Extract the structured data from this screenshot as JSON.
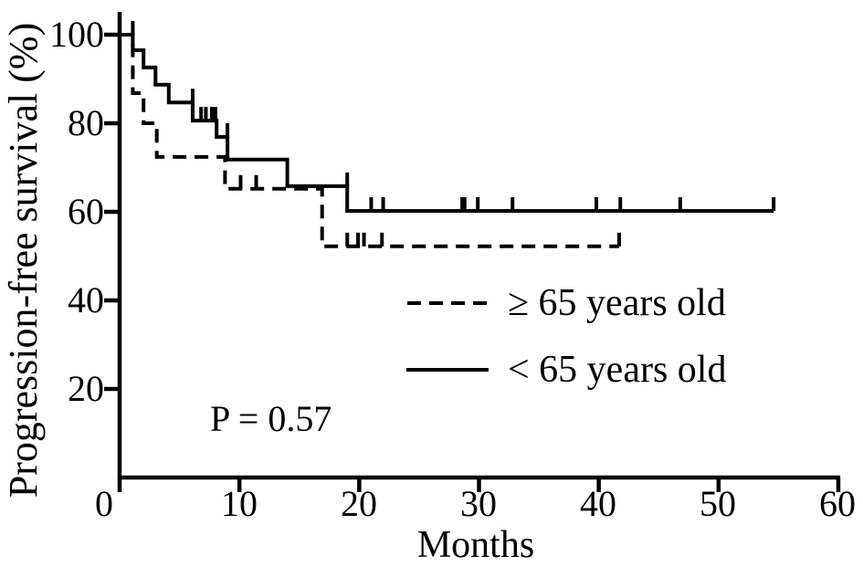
{
  "figure": {
    "background_color": "#ffffff",
    "line_color": "#000000"
  },
  "chart_data": {
    "type": "line",
    "subtype": "kaplan-meier-step",
    "title": "",
    "xlabel": "Months",
    "ylabel": "Progression-free survival (%)",
    "annotation": "P = 0.57",
    "xlim": [
      0,
      60
    ],
    "ylim": [
      0,
      100
    ],
    "x_ticks": [
      0,
      10,
      20,
      30,
      40,
      50,
      60
    ],
    "y_ticks": [
      100,
      80,
      60,
      40,
      20
    ],
    "grid": false,
    "legend_position": "center-right",
    "series": [
      {
        "name": "≥ 65 years old",
        "style": "dashed",
        "steps": [
          [
            0,
            100
          ],
          [
            1.1,
            100
          ],
          [
            1.1,
            86.8
          ],
          [
            2.0,
            86.8
          ],
          [
            2.0,
            80.0
          ],
          [
            3.1,
            80.0
          ],
          [
            3.1,
            72.4
          ],
          [
            8.8,
            72.4
          ],
          [
            8.8,
            65.2
          ],
          [
            16.9,
            65.2
          ],
          [
            16.9,
            52.2
          ],
          [
            41.7,
            52.2
          ]
        ],
        "censor_marks": [
          [
            10.1,
            65.2
          ],
          [
            11.4,
            65.2
          ],
          [
            19.0,
            52.2
          ],
          [
            19.9,
            52.2
          ],
          [
            20.4,
            52.2
          ],
          [
            21.9,
            52.2
          ],
          [
            41.7,
            52.2
          ]
        ]
      },
      {
        "name": "< 65 years old",
        "style": "solid",
        "steps": [
          [
            0,
            100
          ],
          [
            1.1,
            100
          ],
          [
            1.1,
            96.5
          ],
          [
            2.0,
            96.5
          ],
          [
            2.0,
            92.6
          ],
          [
            3.0,
            92.6
          ],
          [
            3.0,
            88.7
          ],
          [
            4.1,
            88.7
          ],
          [
            4.1,
            84.7
          ],
          [
            6.1,
            84.7
          ],
          [
            6.1,
            80.6
          ],
          [
            8.1,
            80.6
          ],
          [
            8.1,
            76.9
          ],
          [
            9.0,
            76.9
          ],
          [
            9.0,
            71.8
          ],
          [
            14.0,
            71.8
          ],
          [
            14.0,
            65.8
          ],
          [
            19.0,
            65.8
          ],
          [
            19.0,
            60.2
          ],
          [
            54.6,
            60.2
          ]
        ],
        "censor_marks": [
          [
            1.1,
            100
          ],
          [
            6.1,
            84.7
          ],
          [
            6.8,
            80.6
          ],
          [
            7.2,
            80.6
          ],
          [
            7.7,
            80.6
          ],
          [
            8.0,
            80.6
          ],
          [
            9.0,
            76.9
          ],
          [
            19.0,
            65.8
          ],
          [
            21.0,
            60.2
          ],
          [
            22.0,
            60.2
          ],
          [
            28.6,
            60.2
          ],
          [
            28.8,
            60.2
          ],
          [
            29.9,
            60.2
          ],
          [
            32.8,
            60.2
          ],
          [
            39.8,
            60.2
          ],
          [
            41.8,
            60.2
          ],
          [
            46.8,
            60.2
          ],
          [
            54.6,
            60.2
          ]
        ]
      }
    ]
  }
}
